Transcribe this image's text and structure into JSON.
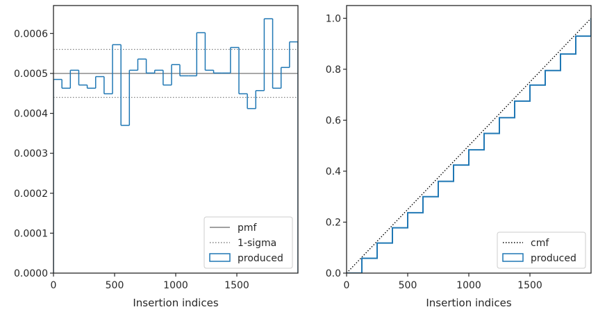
{
  "chart_data": [
    {
      "type": "step-histogram",
      "xlabel": "Insertion indices",
      "bins": [
        0,
        69,
        138,
        207,
        276,
        345,
        414,
        483,
        552,
        621,
        690,
        759,
        828,
        897,
        966,
        1034,
        1103,
        1172,
        1241,
        1310,
        1379,
        1448,
        1517,
        1586,
        1655,
        1724,
        1793,
        1862,
        1931,
        2000
      ],
      "series": [
        {
          "name": "pmf",
          "color": "#808080",
          "style": "solid",
          "levels": [
            0.0005
          ]
        },
        {
          "name": "1-sigma",
          "color": "#808080",
          "style": "dotted",
          "levels": [
            0.00044,
            0.00056
          ]
        },
        {
          "name": "produced",
          "color": "#1f77b4",
          "style": "step",
          "values": [
            0.000485,
            0.000463,
            0.000508,
            0.000471,
            0.000463,
            0.000492,
            0.000449,
            0.000572,
            0.00037,
            0.000508,
            0.000536,
            0.000501,
            0.000508,
            0.000471,
            0.000522,
            0.000494,
            0.000494,
            0.000602,
            0.000508,
            0.000501,
            0.000501,
            0.000565,
            0.000449,
            0.000412,
            0.000457,
            0.000637,
            0.000463,
            0.000515,
            0.000579
          ]
        }
      ],
      "xlim": [
        0,
        2000
      ],
      "xticks": [
        0,
        500,
        1000,
        1500
      ],
      "ylim": [
        0,
        0.00067
      ],
      "yticks": [
        {
          "value": 0,
          "label": "0.0000"
        },
        {
          "value": 0.0001,
          "label": "0.0001"
        },
        {
          "value": 0.0002,
          "label": "0.0002"
        },
        {
          "value": 0.0003,
          "label": "0.0003"
        },
        {
          "value": 0.0004,
          "label": "0.0004"
        },
        {
          "value": 0.0005,
          "label": "0.0005"
        },
        {
          "value": 0.0006,
          "label": "0.0006"
        }
      ],
      "legend": "lower right"
    },
    {
      "type": "line",
      "xlabel": "Insertion indices",
      "x": [
        0,
        125,
        250,
        375,
        500,
        625,
        750,
        875,
        1000,
        1125,
        1250,
        1375,
        1500,
        1625,
        1750,
        1875,
        2000
      ],
      "series": [
        {
          "name": "cmf",
          "color": "#000000",
          "style": "dotted",
          "values": [
            0,
            0.0625,
            0.125,
            0.1875,
            0.25,
            0.3125,
            0.375,
            0.4375,
            0.5,
            0.5625,
            0.625,
            0.6875,
            0.75,
            0.8125,
            0.875,
            0.9375,
            1.0
          ]
        },
        {
          "name": "produced",
          "color": "#1f77b4",
          "style": "step",
          "values": [
            0,
            0.058,
            0.118,
            0.178,
            0.237,
            0.3,
            0.36,
            0.424,
            0.484,
            0.548,
            0.61,
            0.675,
            0.738,
            0.795,
            0.86,
            0.93,
            1.0
          ]
        }
      ],
      "xlim": [
        0,
        2000
      ],
      "xticks": [
        0,
        500,
        1000,
        1500
      ],
      "ylim": [
        0,
        1.05
      ],
      "yticks": [
        {
          "value": 0,
          "label": "0.0"
        },
        {
          "value": 0.2,
          "label": "0.2"
        },
        {
          "value": 0.4,
          "label": "0.4"
        },
        {
          "value": 0.6,
          "label": "0.6"
        },
        {
          "value": 0.8,
          "label": "0.8"
        },
        {
          "value": 1.0,
          "label": "1.0"
        }
      ],
      "legend": "lower right"
    }
  ]
}
